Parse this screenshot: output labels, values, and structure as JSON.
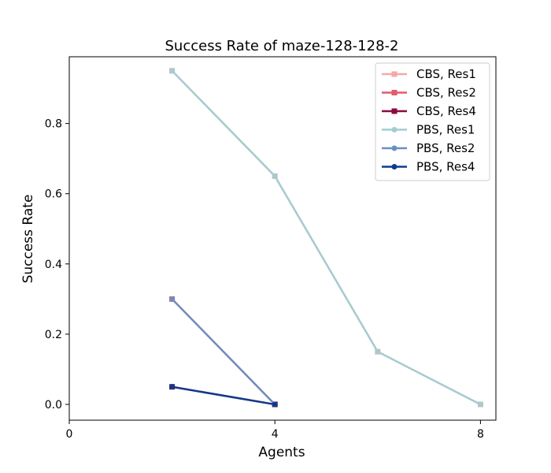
{
  "chart_data": {
    "type": "line",
    "title": "Success Rate of maze-128-128-2",
    "xlabel": "Agents",
    "ylabel": "Success Rate",
    "xlim": [
      0,
      8.3
    ],
    "ylim": [
      -0.045,
      0.99
    ],
    "xticks": [
      0,
      4,
      8
    ],
    "yticks": [
      0.0,
      0.2,
      0.4,
      0.6,
      0.8
    ],
    "ytick_labels": [
      "0.0",
      "0.2",
      "0.4",
      "0.6",
      "0.8"
    ],
    "legend_position": "top-right",
    "grid": false,
    "series": [
      {
        "name": "CBS, Res1",
        "color": "#f4a9a8",
        "marker": "square",
        "x": [
          2,
          4,
          6,
          8
        ],
        "y": [
          0.95,
          0.65,
          0.15,
          0.0
        ]
      },
      {
        "name": "CBS, Res2",
        "color": "#e05c6e",
        "marker": "square",
        "x": [
          2,
          4
        ],
        "y": [
          0.3,
          0.0
        ]
      },
      {
        "name": "CBS, Res4",
        "color": "#8b0a3f",
        "marker": "square",
        "x": [
          2,
          4
        ],
        "y": [
          0.05,
          0.0
        ]
      },
      {
        "name": "PBS, Res1",
        "color": "#a3cdd1",
        "marker": "circle",
        "x": [
          2,
          4,
          6,
          8
        ],
        "y": [
          0.95,
          0.65,
          0.15,
          0.0
        ]
      },
      {
        "name": "PBS, Res2",
        "color": "#6a8fc0",
        "marker": "circle",
        "x": [
          2,
          4
        ],
        "y": [
          0.3,
          0.0
        ]
      },
      {
        "name": "PBS, Res4",
        "color": "#0d3b8c",
        "marker": "circle",
        "x": [
          2,
          4
        ],
        "y": [
          0.05,
          0.0
        ]
      }
    ]
  }
}
